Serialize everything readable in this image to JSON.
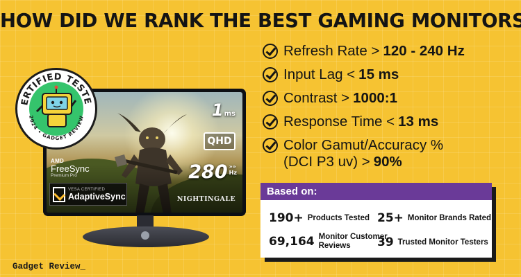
{
  "title": "HOW DID WE RANK THE BEST GAMING MONITORS?",
  "seal": {
    "top_text": "CERTIFIED TESTED",
    "bottom_text": "2024 • GADGET REVIEW"
  },
  "monitor": {
    "response_badge": "1",
    "response_unit": "ms",
    "qhd": "QHD",
    "refresh_badge": "280",
    "refresh_arrows": "»»",
    "refresh_unit": "Hz",
    "game_logo": "NIGHTINGALE",
    "amd_brand": "AMD",
    "freesync": "FreeSync",
    "freesync_tier": "Premium Pro",
    "vesa": "VESA CERTIFIED",
    "adaptive_sync": "AdaptiveSync"
  },
  "criteria": [
    {
      "label": "Refresh Rate >",
      "value": "120 - 240 Hz"
    },
    {
      "label": "Input Lag <",
      "value": "15 ms"
    },
    {
      "label": "Contrast >",
      "value": "1000:1"
    },
    {
      "label": "Response Time <",
      "value": "13 ms"
    },
    {
      "label": "Color Gamut/Accuracy %",
      "label2": "(DCI P3 uv) >",
      "value": "90%"
    }
  ],
  "based_on": {
    "heading": "Based on:",
    "stats": [
      {
        "number": "190+",
        "label": "Products Tested"
      },
      {
        "number": "25+",
        "label": "Monitor Brands Rated"
      },
      {
        "number": "69,164",
        "label": "Monitor Customer",
        "label2": "Reviews"
      },
      {
        "number": "39",
        "label": "Trusted Monitor Testers"
      }
    ]
  },
  "footer_logo": "Gadget Review_",
  "colors": {
    "background": "#f6c332",
    "accent_purple": "#6a3a98",
    "seal_green": "#35c46c"
  }
}
